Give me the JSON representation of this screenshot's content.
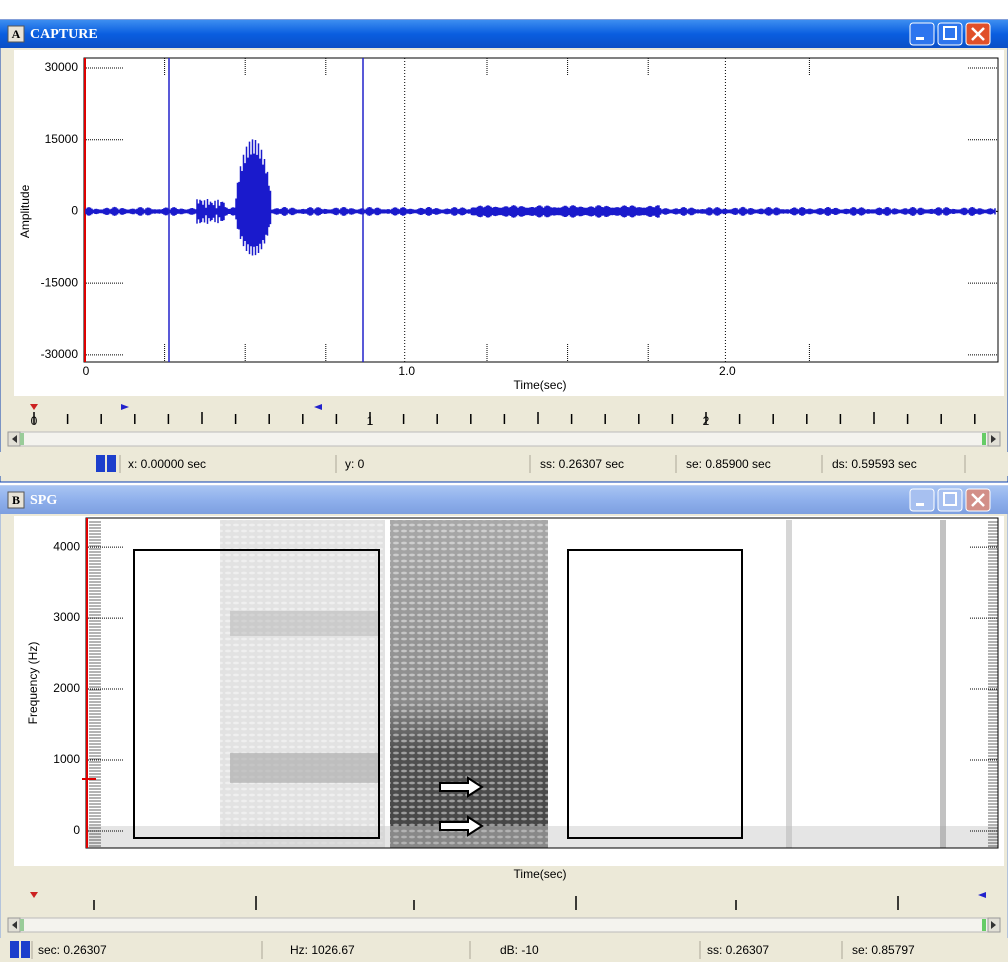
{
  "windows": [
    {
      "letter": "A",
      "title": "CAPTURE",
      "plot": {
        "y_label": "Amplitude",
        "x_label": "Time(sec)",
        "ylim": [
          -31500,
          32100
        ],
        "yticks": [
          30000,
          15000,
          0,
          -15000,
          -30000
        ],
        "xlim": [
          0,
          2.85
        ],
        "xticks": [
          0,
          {
            "value": 1,
            "label": "1.0"
          },
          {
            "value": 2,
            "label": "2.0"
          }
        ]
      },
      "ruler": [
        0,
        1,
        2
      ],
      "status": [
        "x: 0.00000 sec",
        "y: 0",
        "ss: 0.26307 sec",
        "se: 0.85900 sec",
        "ds: 0.59593 sec"
      ]
    },
    {
      "letter": "B",
      "title": "SPG",
      "plot": {
        "y_label": "Frequency (Hz)",
        "x_label": "Time(sec)",
        "ylim": [
          -240,
          4410
        ],
        "yticks": [
          4000,
          3000,
          2000,
          1000,
          0
        ]
      },
      "status": [
        "sec: 0.26307",
        "Hz: 1026.67",
        "dB: -10",
        "ss: 0.26307",
        "se: 0.85797"
      ]
    }
  ]
}
